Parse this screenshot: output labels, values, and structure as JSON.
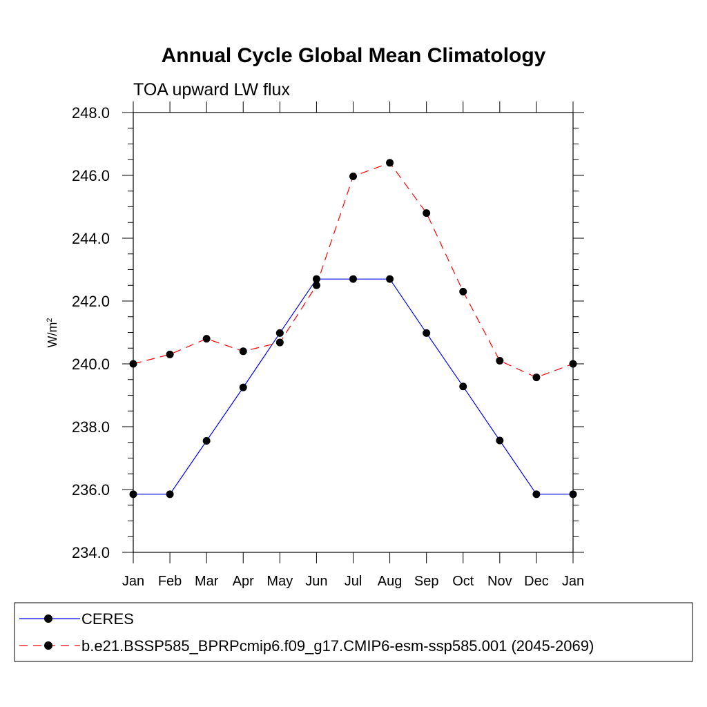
{
  "chart_data": {
    "type": "line",
    "title": "Annual Cycle Global Mean Climatology",
    "subtitle": "TOA upward LW flux",
    "ylabel": "W/m",
    "ylabel_superscript": "2",
    "categories": [
      "Jan",
      "Feb",
      "Mar",
      "Apr",
      "May",
      "Jun",
      "Jul",
      "Aug",
      "Sep",
      "Oct",
      "Nov",
      "Dec",
      "Jan"
    ],
    "ylim": [
      234.0,
      248.0
    ],
    "yticks": [
      "234.0",
      "236.0",
      "238.0",
      "240.0",
      "242.0",
      "244.0",
      "246.0",
      "248.0"
    ],
    "series": [
      {
        "name": "CERES",
        "color": "#0000ff",
        "dash": "solid",
        "marker": "circle",
        "values": [
          235.85,
          235.85,
          237.55,
          239.25,
          240.98,
          242.7,
          242.7,
          242.7,
          240.98,
          239.28,
          237.56,
          235.85,
          235.85
        ]
      },
      {
        "name": "b.e21.BSSP585_BPRPcmip6.f09_g17.CMIP6-esm-ssp585.001 (2045-2069)",
        "color": "#ff0000",
        "dash": "dashed",
        "marker": "circle",
        "values": [
          240.0,
          240.3,
          240.8,
          240.4,
          240.68,
          242.5,
          245.97,
          246.4,
          244.8,
          242.3,
          240.1,
          239.57,
          240.0
        ]
      }
    ],
    "legend_position": "bottom"
  }
}
